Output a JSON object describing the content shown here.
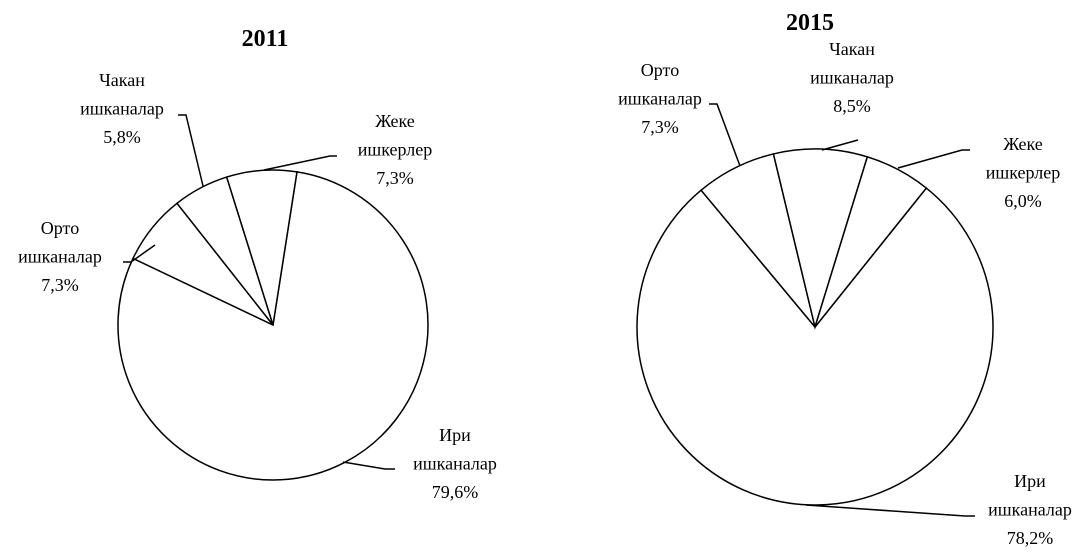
{
  "chart_data": [
    {
      "type": "pie",
      "title": "2011",
      "categories": [
        "Ири ишканалар",
        "Орто ишканалар",
        "Чакан ишканалар",
        "Жеке ишкерлер"
      ],
      "values": [
        79.6,
        7.3,
        5.8,
        7.3
      ],
      "value_labels": [
        "79,6%",
        "7,3%",
        "5,8%",
        "7,3%"
      ],
      "color": "#ffffff"
    },
    {
      "type": "pie",
      "title": "2015",
      "categories": [
        "Ири ишканалар",
        "Орто ишканалар",
        "Чакан ишканалар",
        "Жеке ишкерлер"
      ],
      "values": [
        78.2,
        7.3,
        8.5,
        6.0
      ],
      "value_labels": [
        "78,2%",
        "7,3%",
        "8,5%",
        "6,0%"
      ],
      "color": "#ffffff"
    }
  ]
}
